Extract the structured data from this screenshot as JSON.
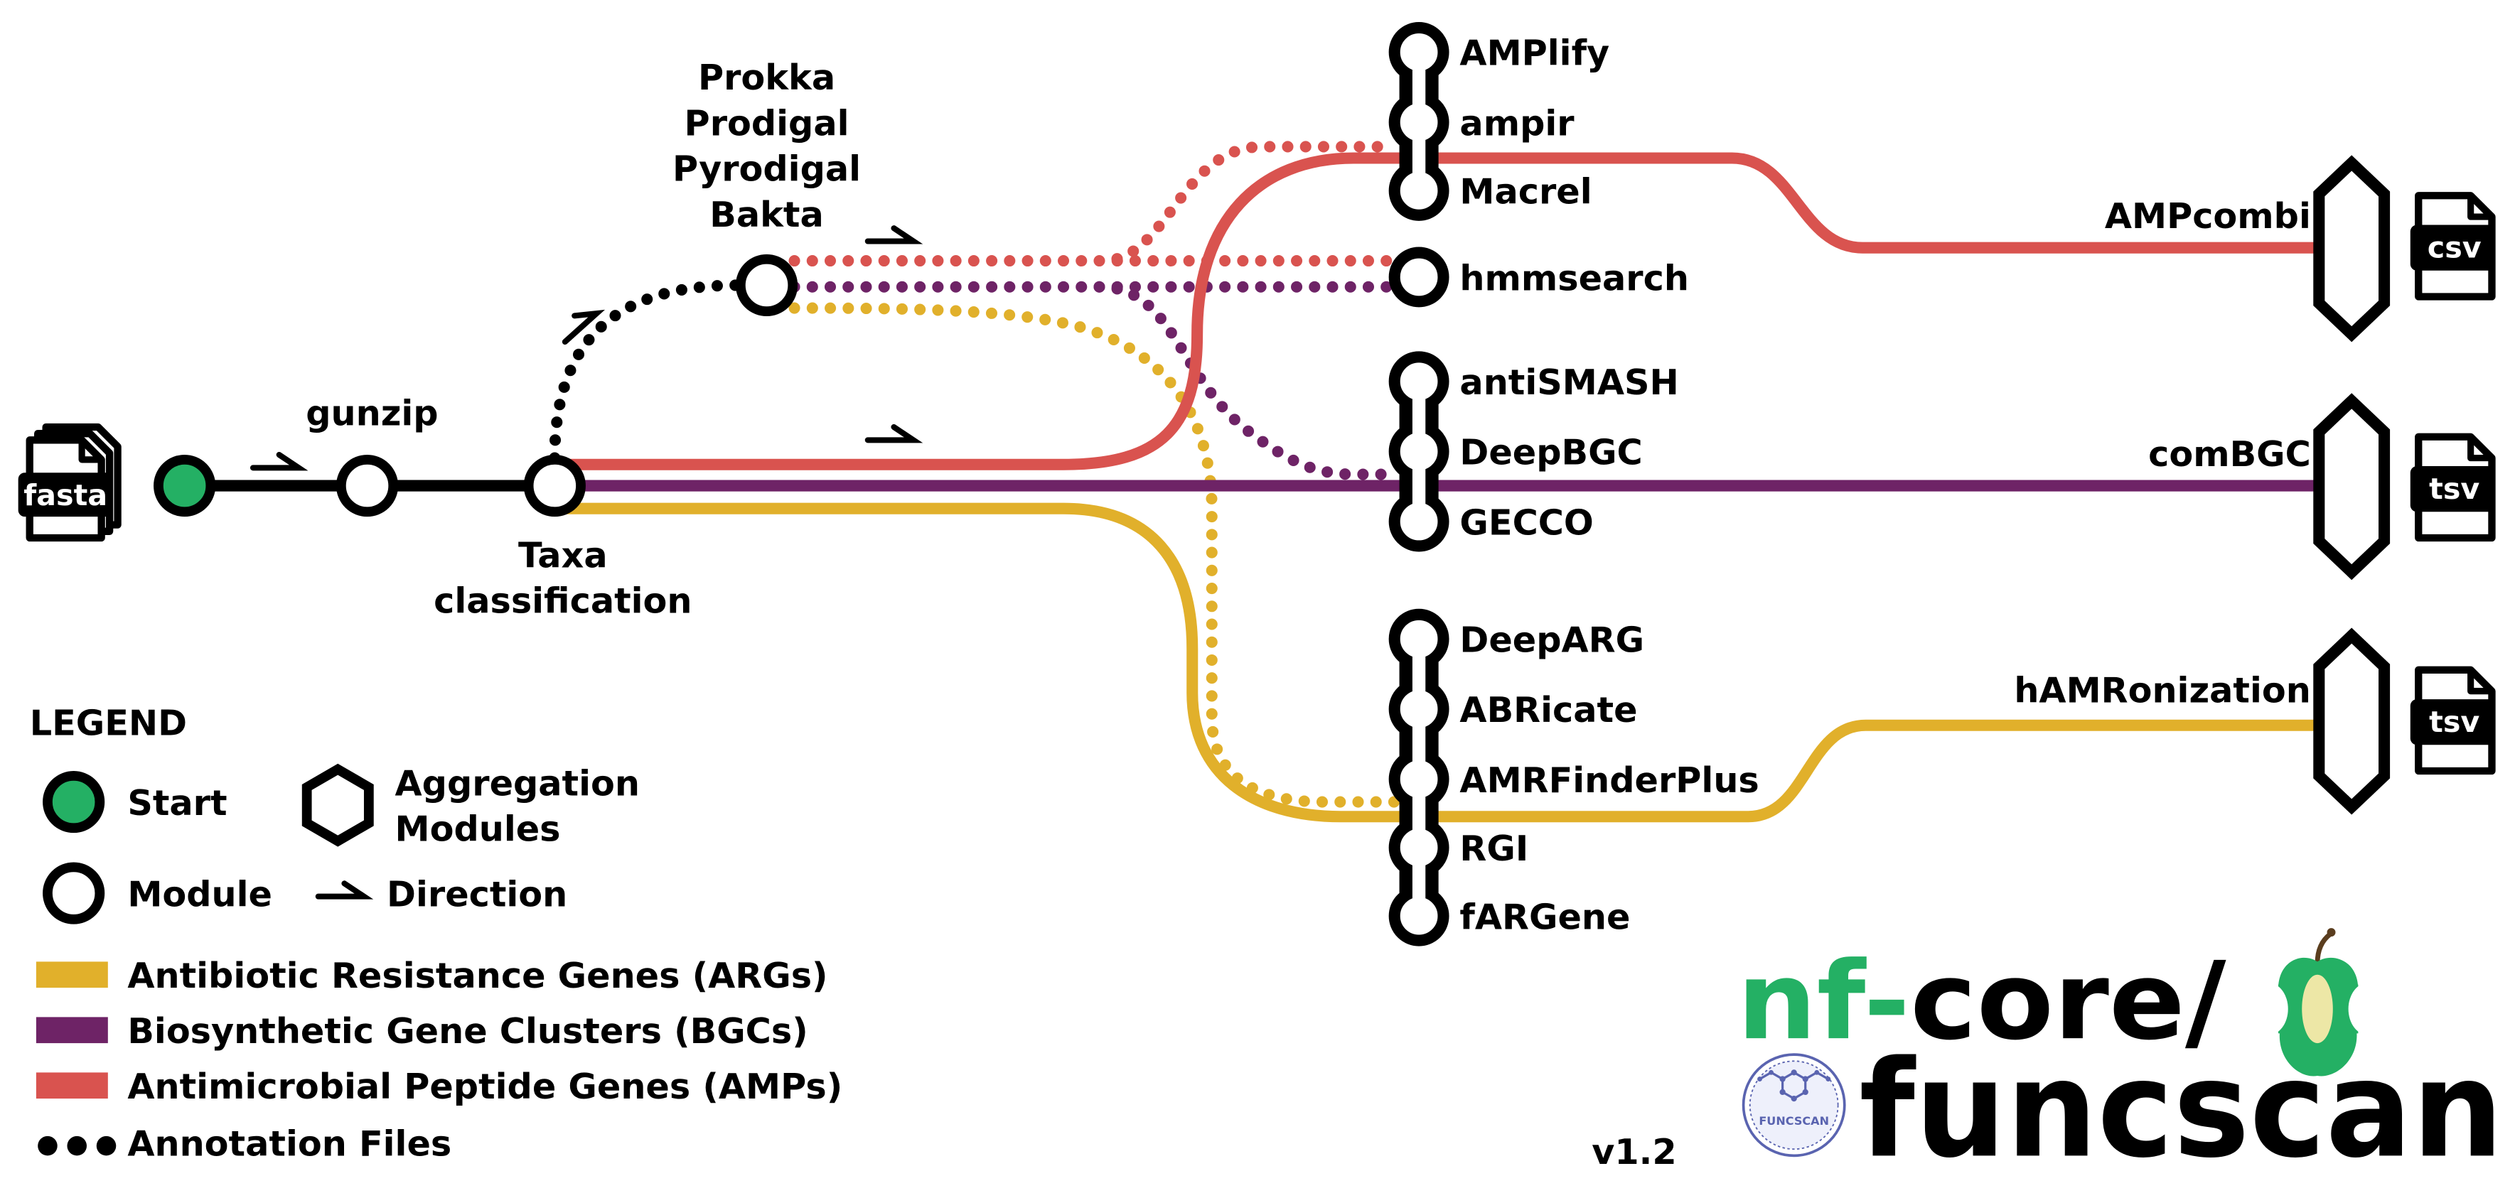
{
  "input_file": "fasta",
  "steps": {
    "gunzip": "gunzip",
    "taxa": [
      "Taxa",
      "classification"
    ],
    "annotation": [
      "Prokka",
      "Prodigal",
      "Pyrodigal",
      "Bakta"
    ]
  },
  "modules": {
    "amp": [
      "AMPlify",
      "ampir",
      "Macrel"
    ],
    "shared": [
      "hmmsearch"
    ],
    "bgc": [
      "antiSMASH",
      "DeepBGC",
      "GECCO"
    ],
    "arg": [
      "DeepARG",
      "ABRicate",
      "AMRFinderPlus",
      "RGI",
      "fARGene"
    ]
  },
  "aggregation": [
    {
      "label": "AMPcombi",
      "output": "csv"
    },
    {
      "label": "comBGC",
      "output": "tsv"
    },
    {
      "label": "hAMRonization",
      "output": "tsv"
    }
  ],
  "legend": {
    "title": "LEGEND",
    "start": "Start",
    "module": "Module",
    "aggregation": [
      "Aggregation",
      "Modules"
    ],
    "direction": "Direction",
    "tracks": [
      "Antibiotic Resistance Genes (ARGs)",
      "Biosynthetic Gene Clusters (BGCs)",
      "Antimicrobial Peptide Genes (AMPs)"
    ],
    "annotation_files": "Annotation Files"
  },
  "colors": {
    "start": "#24B064",
    "amp": "#D9534F",
    "bgc": "#6E2366",
    "arg": "#E1B02B",
    "logo": "#24B064",
    "apple-core": "#EDE7A6",
    "badge": "#5A64B0"
  },
  "logo": {
    "prefix_green": "nf-",
    "prefix_black": "core/",
    "name": "funcscan",
    "badge": "FUNCSCAN"
  },
  "version": "v1.2"
}
